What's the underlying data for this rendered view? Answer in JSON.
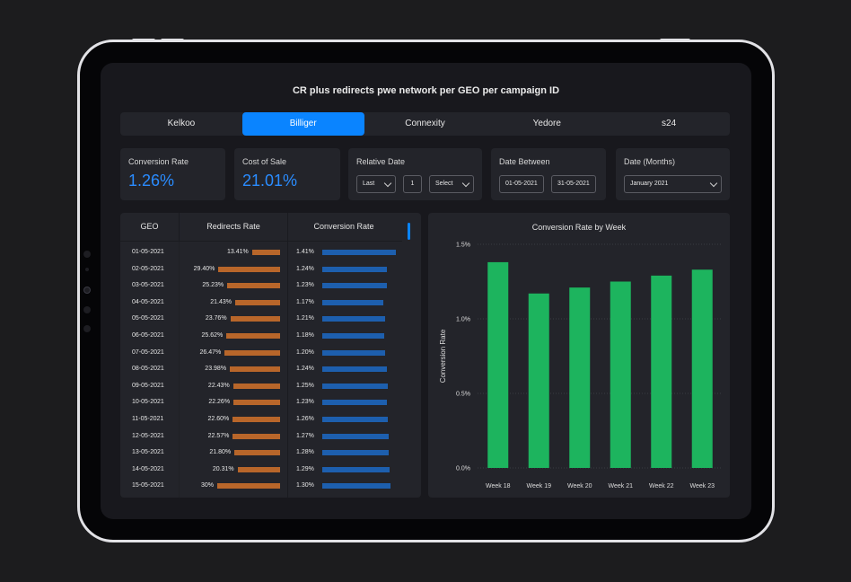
{
  "title": "CR plus redirects pwe network per GEO per campaign ID",
  "tabs": [
    {
      "label": "Kelkoo",
      "active": false
    },
    {
      "label": "Billiger",
      "active": true
    },
    {
      "label": "Connexity",
      "active": false
    },
    {
      "label": "Yedore",
      "active": false
    },
    {
      "label": "s24",
      "active": false
    }
  ],
  "kpis": {
    "conversion_rate": {
      "label": "Conversion Rate",
      "value": "1.26%"
    },
    "cost_of_sale": {
      "label": "Cost of Sale",
      "value": "21.01%"
    }
  },
  "filters": {
    "relative_date": {
      "label": "Relative Date",
      "period": "Last",
      "number": "1",
      "unit": "Select"
    },
    "date_between": {
      "label": "Date Between",
      "from": "01-05-2021",
      "to": "31-05-2021"
    },
    "date_months": {
      "label": "Date (Months)",
      "value": "January 2021"
    }
  },
  "table": {
    "headers": {
      "geo": "GEO",
      "redirects": "Redirects Rate",
      "conversion": "Conversion Rate"
    },
    "rows": [
      {
        "geo": "01-05-2021",
        "redirects": "13.41%",
        "redirects_value": 13.41,
        "conversion": "1.41%",
        "conversion_value": 1.41
      },
      {
        "geo": "02-05-2021",
        "redirects": "29.40%",
        "redirects_value": 29.4,
        "conversion": "1.24%",
        "conversion_value": 1.24
      },
      {
        "geo": "03-05-2021",
        "redirects": "25.23%",
        "redirects_value": 25.23,
        "conversion": "1.23%",
        "conversion_value": 1.23
      },
      {
        "geo": "04-05-2021",
        "redirects": "21.43%",
        "redirects_value": 21.43,
        "conversion": "1.17%",
        "conversion_value": 1.17
      },
      {
        "geo": "05-05-2021",
        "redirects": "23.76%",
        "redirects_value": 23.76,
        "conversion": "1.21%",
        "conversion_value": 1.21
      },
      {
        "geo": "06-05-2021",
        "redirects": "25.62%",
        "redirects_value": 25.62,
        "conversion": "1.18%",
        "conversion_value": 1.18
      },
      {
        "geo": "07-05-2021",
        "redirects": "26.47%",
        "redirects_value": 26.47,
        "conversion": "1.20%",
        "conversion_value": 1.2
      },
      {
        "geo": "08-05-2021",
        "redirects": "23.98%",
        "redirects_value": 23.98,
        "conversion": "1.24%",
        "conversion_value": 1.24
      },
      {
        "geo": "09-05-2021",
        "redirects": "22.43%",
        "redirects_value": 22.43,
        "conversion": "1.25%",
        "conversion_value": 1.25
      },
      {
        "geo": "10-05-2021",
        "redirects": "22.26%",
        "redirects_value": 22.26,
        "conversion": "1.23%",
        "conversion_value": 1.23
      },
      {
        "geo": "11-05-2021",
        "redirects": "22.60%",
        "redirects_value": 22.6,
        "conversion": "1.26%",
        "conversion_value": 1.26
      },
      {
        "geo": "12-05-2021",
        "redirects": "22.57%",
        "redirects_value": 22.57,
        "conversion": "1.27%",
        "conversion_value": 1.27
      },
      {
        "geo": "13-05-2021",
        "redirects": "21.80%",
        "redirects_value": 21.8,
        "conversion": "1.28%",
        "conversion_value": 1.28
      },
      {
        "geo": "14-05-2021",
        "redirects": "20.31%",
        "redirects_value": 20.31,
        "conversion": "1.29%",
        "conversion_value": 1.29
      },
      {
        "geo": "15-05-2021",
        "redirects": "30%",
        "redirects_value": 30,
        "conversion": "1.30%",
        "conversion_value": 1.3
      }
    ]
  },
  "colors": {
    "accent": "#0a84ff",
    "redirect_bar": "#b8662a",
    "conversion_bar": "#1d5fae",
    "chart_bar": "#1db45e"
  },
  "chart_data": {
    "type": "bar",
    "title": "Conversion Rate by Week",
    "xlabel": "",
    "ylabel": "Conversion Rate",
    "categories": [
      "Week 18",
      "Week 19",
      "Week 20",
      "Week 21",
      "Week 22",
      "Week 23"
    ],
    "values": [
      1.38,
      1.17,
      1.21,
      1.25,
      1.29,
      1.33
    ],
    "ylim": [
      0,
      1.5
    ],
    "yticks": [
      0,
      0.5,
      1.0,
      1.5
    ],
    "ytick_labels": [
      "0.0%",
      "0.5%",
      "1.0%",
      "1.5%"
    ],
    "grid": true
  }
}
